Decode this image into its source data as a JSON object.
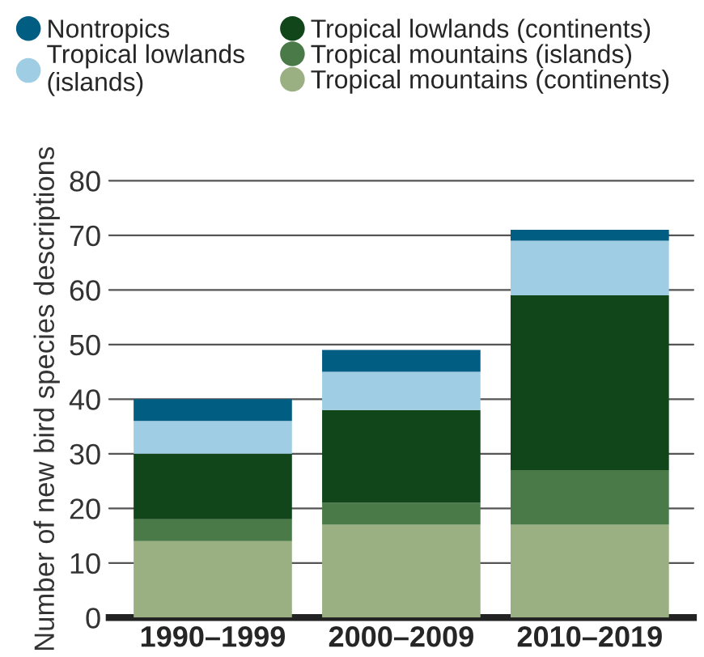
{
  "chart_data": {
    "type": "bar",
    "stacked": true,
    "ylabel": "Number of new bird species descriptions",
    "categories": [
      "1990–1999",
      "2000–2009",
      "2010–2019"
    ],
    "series": [
      {
        "name": "Tropical mountains (continents)",
        "color": "#9ab083",
        "values": [
          14,
          17,
          17
        ]
      },
      {
        "name": "Tropical mountains (islands)",
        "color": "#4a7a48",
        "values": [
          4,
          4,
          10
        ]
      },
      {
        "name": "Tropical lowlands (continents)",
        "color": "#11451a",
        "values": [
          12,
          17,
          32
        ]
      },
      {
        "name": "Tropical lowlands\n(islands)",
        "color": "#9fcee4",
        "values": [
          6,
          7,
          10
        ]
      },
      {
        "name": "Nontropics",
        "color": "#025d82",
        "values": [
          4,
          4,
          2
        ]
      }
    ],
    "ylim": [
      0,
      80
    ],
    "yticks": [
      0,
      10,
      20,
      30,
      40,
      50,
      60,
      70,
      80
    ],
    "grid": "y",
    "legend": "top"
  }
}
